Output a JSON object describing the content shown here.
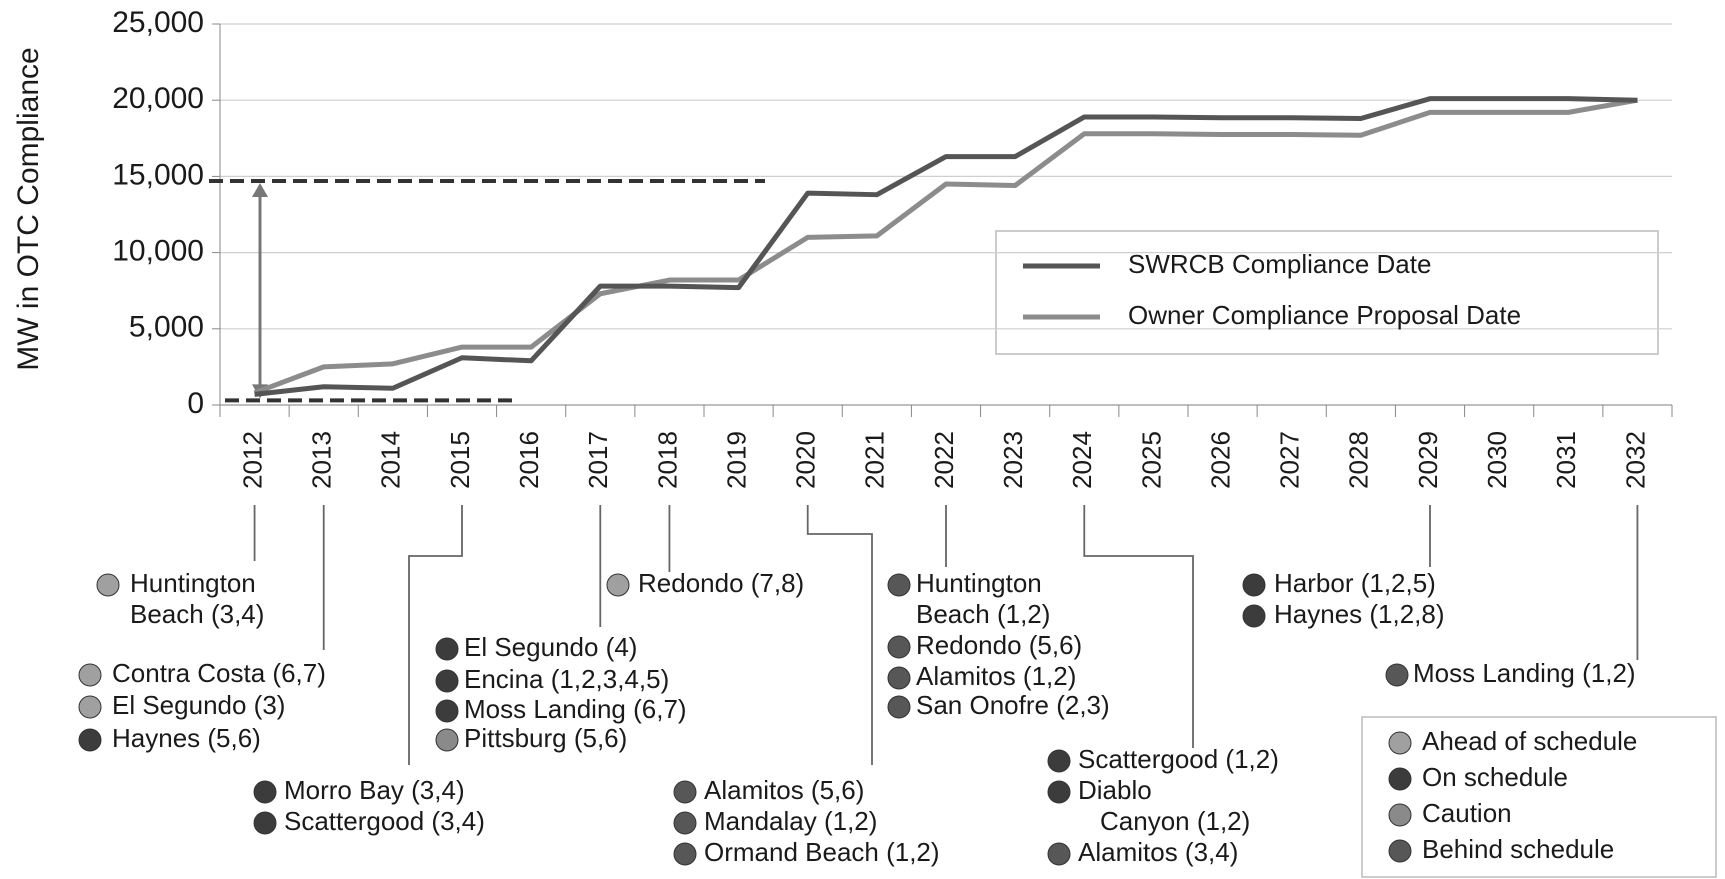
{
  "chart_data": {
    "type": "line",
    "y_label": "MW in OTC Compliance",
    "categories": [
      "2012",
      "2013",
      "2014",
      "2015",
      "2016",
      "2017",
      "2018",
      "2019",
      "2020",
      "2021",
      "2022",
      "2023",
      "2024",
      "2025",
      "2026",
      "2027",
      "2028",
      "2029",
      "2030",
      "2031",
      "2032"
    ],
    "series": [
      {
        "name": "SWRCB Compliance Date",
        "color": "#555555",
        "values": [
          700,
          1200,
          1100,
          3100,
          2900,
          7800,
          7800,
          7700,
          13900,
          13800,
          16300,
          16300,
          18900,
          18900,
          18850,
          18850,
          18800,
          20100,
          20100,
          20100,
          20000
        ]
      },
      {
        "name": "Owner Compliance Proposal Date",
        "color": "#8c8c8c",
        "values": [
          800,
          2500,
          2700,
          3800,
          3800,
          7300,
          8200,
          8200,
          11000,
          11100,
          14500,
          14400,
          17800,
          17800,
          17750,
          17750,
          17700,
          19200,
          19200,
          19200,
          20000
        ]
      }
    ],
    "ylim": [
      0,
      25000
    ],
    "yticks": [
      0,
      {
        "value": 5000,
        "label": "5,000"
      },
      {
        "value": 10000,
        "label": "10,000"
      },
      {
        "value": 15000,
        "label": "15,000"
      },
      {
        "value": 20000,
        "label": "20,000"
      },
      {
        "value": 25000,
        "label": "25,000"
      }
    ],
    "grid": true,
    "dashed_lines": [
      14700,
      300
    ],
    "status_legend": [
      {
        "name": "Ahead of schedule",
        "color": "#a0a0a0"
      },
      {
        "name": "On schedule",
        "color": "#3c3c3c"
      },
      {
        "name": "Caution",
        "color": "#8a8a8a"
      },
      {
        "name": "Behind schedule",
        "color": "#575757"
      }
    ],
    "annotations": [
      {
        "items": [
          {
            "label": [
              "Huntington",
              "Beach (3,4)"
            ],
            "status": 0
          }
        ]
      },
      {
        "items": [
          {
            "label": [
              "Contra Costa (6,7)"
            ],
            "status": 0
          },
          {
            "label": [
              "El Segundo (3)"
            ],
            "status": 0
          },
          {
            "label": [
              "Haynes (5,6)"
            ],
            "status": 1
          }
        ]
      },
      {
        "items": [
          {
            "label": [
              "Morro Bay (3,4)"
            ],
            "status": 1
          },
          {
            "label": [
              "Scattergood (3,4)"
            ],
            "status": 1
          }
        ]
      },
      {
        "items": [
          {
            "label": [
              "El Segundo (4)"
            ],
            "status": 1
          },
          {
            "label": [
              "Encina (1,2,3,4,5)"
            ],
            "status": 1
          },
          {
            "label": [
              "Moss Landing (6,7)"
            ],
            "status": 1
          },
          {
            "label": [
              "Pittsburg (5,6)"
            ],
            "status": 2
          }
        ]
      },
      {
        "items": [
          {
            "label": [
              "Redondo (7,8)"
            ],
            "status": 0
          }
        ]
      },
      {
        "items": [
          {
            "label": [
              "Alamitos (5,6)"
            ],
            "status": 3
          },
          {
            "label": [
              "Mandalay (1,2)"
            ],
            "status": 3
          },
          {
            "label": [
              "Ormand Beach (1,2)"
            ],
            "status": 3
          }
        ]
      },
      {
        "items": [
          {
            "label": [
              "Huntington",
              "Beach (1,2)"
            ],
            "status": 3
          },
          {
            "label": [
              "Redondo (5,6)"
            ],
            "status": 3
          },
          {
            "label": [
              "Alamitos (1,2)"
            ],
            "status": 3
          },
          {
            "label": [
              "San Onofre (2,3)"
            ],
            "status": 3
          }
        ]
      },
      {
        "items": [
          {
            "label": [
              "Scattergood (1,2)"
            ],
            "status": 1
          },
          {
            "label": [
              "Diablo",
              "Canyon (1,2)"
            ],
            "status": 1
          },
          {
            "label": [
              "Alamitos (3,4)"
            ],
            "status": 3
          }
        ]
      },
      {
        "items": [
          {
            "label": [
              "Harbor (1,2,5)"
            ],
            "status": 1
          },
          {
            "label": [
              "Haynes (1,2,8)"
            ],
            "status": 1
          }
        ]
      },
      {
        "items": [
          {
            "label": [
              "Moss Landing (1,2)"
            ],
            "status": 3
          }
        ]
      }
    ]
  }
}
